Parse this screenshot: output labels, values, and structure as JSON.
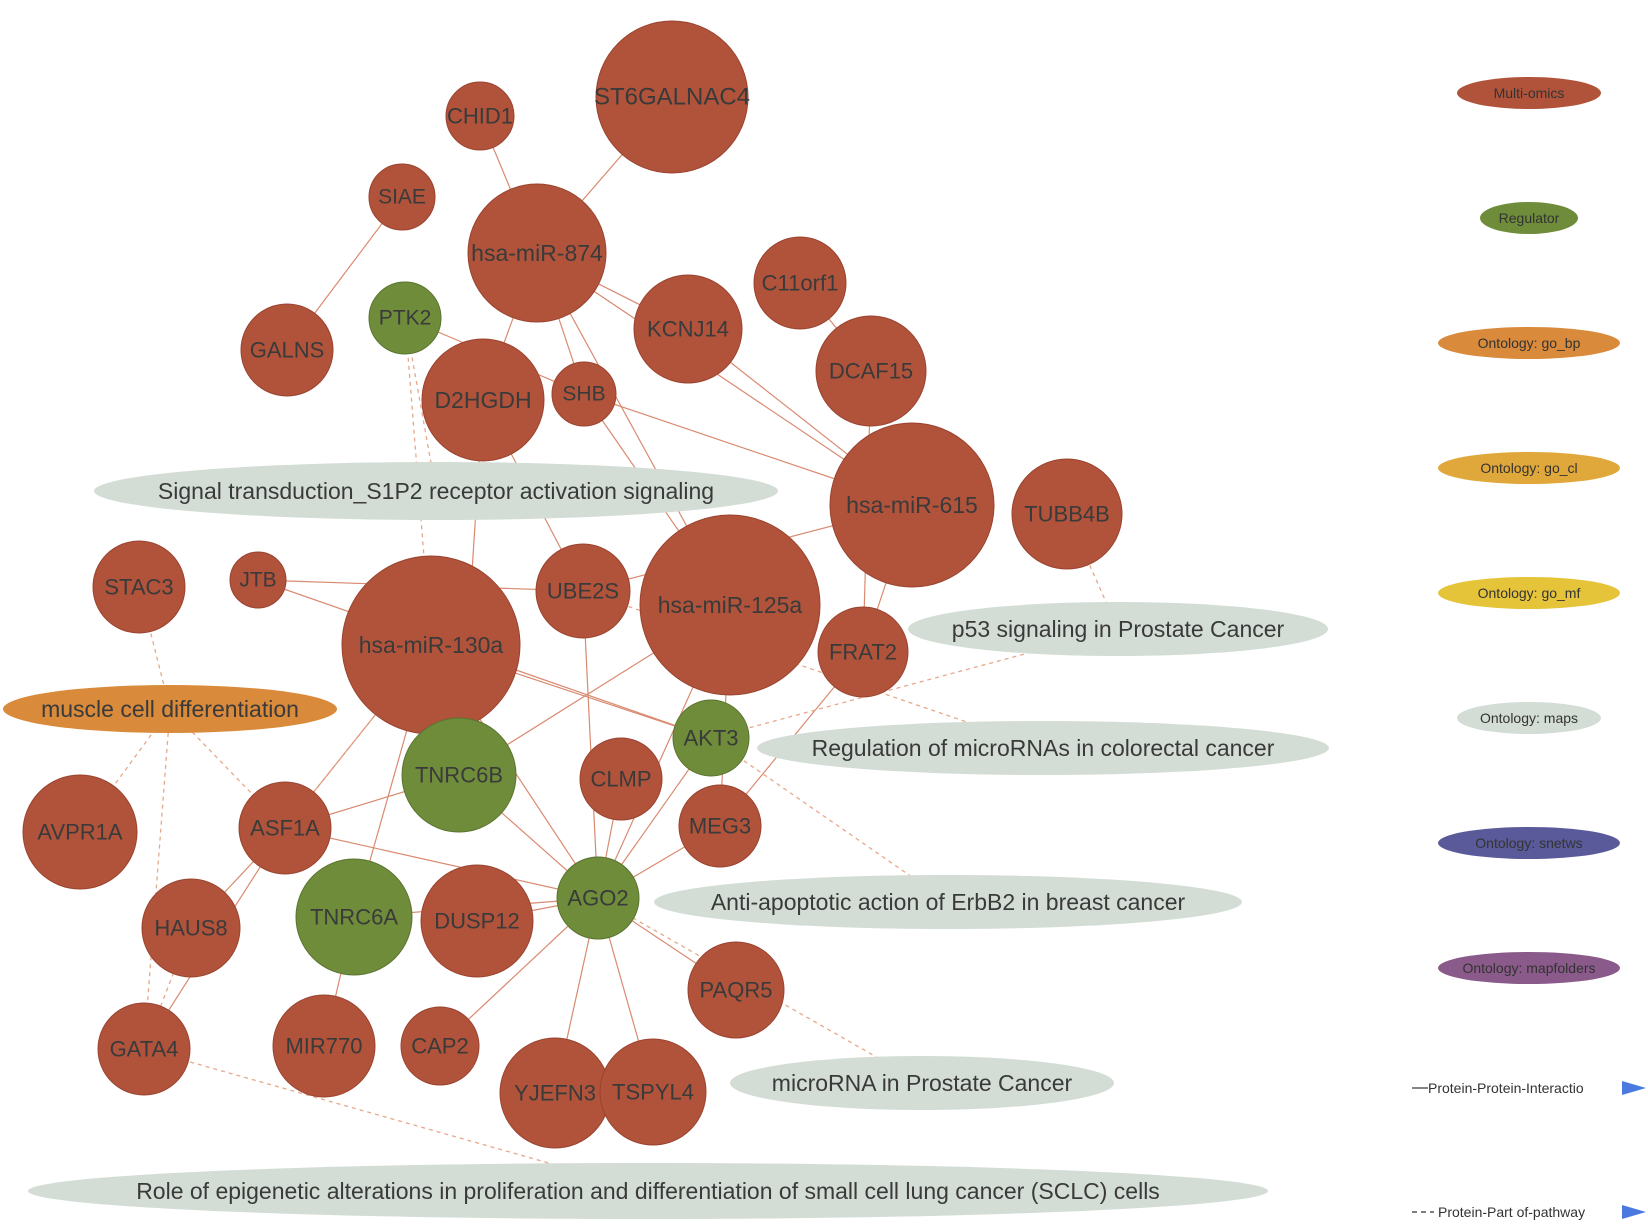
{
  "colors": {
    "multi_omics": "#b0533a",
    "regulator": "#6e8c3a",
    "go_bp": "#d98a3a",
    "go_cl": "#e0a83a",
    "go_mf": "#e6c43a",
    "maps": "#d3ddd5",
    "snetws": "#5a5a9a",
    "mapfolders": "#8a5a8a",
    "ppi_edge": "#d98a70",
    "pathway_edge": "#e6a88a",
    "legend_arrow": "#4a7ae0"
  },
  "nodes": [
    {
      "id": "ST6GALNAC4",
      "label": "ST6GALNAC4",
      "type": "multi_omics"
    },
    {
      "id": "CHID1",
      "label": "CHID1",
      "type": "multi_omics"
    },
    {
      "id": "SIAE",
      "label": "SIAE",
      "type": "multi_omics"
    },
    {
      "id": "hsa-miR-874",
      "label": "hsa-miR-874",
      "type": "multi_omics"
    },
    {
      "id": "C11orf1",
      "label": "C11orf1",
      "type": "multi_omics"
    },
    {
      "id": "PTK2",
      "label": "PTK2",
      "type": "regulator"
    },
    {
      "id": "GALNS",
      "label": "GALNS",
      "type": "multi_omics"
    },
    {
      "id": "KCNJ14",
      "label": "KCNJ14",
      "type": "multi_omics"
    },
    {
      "id": "DCAF15",
      "label": "DCAF15",
      "type": "multi_omics"
    },
    {
      "id": "D2HGDH",
      "label": "D2HGDH",
      "type": "multi_omics"
    },
    {
      "id": "SHB",
      "label": "SHB",
      "type": "multi_omics"
    },
    {
      "id": "hsa-miR-615",
      "label": "hsa-miR-615",
      "type": "multi_omics"
    },
    {
      "id": "TUBB4B",
      "label": "TUBB4B",
      "type": "multi_omics"
    },
    {
      "id": "STAC3",
      "label": "STAC3",
      "type": "multi_omics"
    },
    {
      "id": "JTB",
      "label": "JTB",
      "type": "multi_omics"
    },
    {
      "id": "hsa-miR-130a",
      "label": "hsa-miR-130a",
      "type": "multi_omics"
    },
    {
      "id": "UBE2S",
      "label": "UBE2S",
      "type": "multi_omics"
    },
    {
      "id": "hsa-miR-125a",
      "label": "hsa-miR-125a",
      "type": "multi_omics"
    },
    {
      "id": "FRAT2",
      "label": "FRAT2",
      "type": "multi_omics"
    },
    {
      "id": "AKT3",
      "label": "AKT3",
      "type": "regulator"
    },
    {
      "id": "TNRC6B",
      "label": "TNRC6B",
      "type": "regulator"
    },
    {
      "id": "CLMP",
      "label": "CLMP",
      "type": "multi_omics"
    },
    {
      "id": "AVPR1A",
      "label": "AVPR1A",
      "type": "multi_omics"
    },
    {
      "id": "ASF1A",
      "label": "ASF1A",
      "type": "multi_omics"
    },
    {
      "id": "MEG3",
      "label": "MEG3",
      "type": "multi_omics"
    },
    {
      "id": "HAUS8",
      "label": "HAUS8",
      "type": "multi_omics"
    },
    {
      "id": "TNRC6A",
      "label": "TNRC6A",
      "type": "regulator"
    },
    {
      "id": "DUSP12",
      "label": "DUSP12",
      "type": "multi_omics"
    },
    {
      "id": "AGO2",
      "label": "AGO2",
      "type": "regulator"
    },
    {
      "id": "PAQR5",
      "label": "PAQR5",
      "type": "multi_omics"
    },
    {
      "id": "GATA4",
      "label": "GATA4",
      "type": "multi_omics"
    },
    {
      "id": "MIR770",
      "label": "MIR770",
      "type": "multi_omics"
    },
    {
      "id": "CAP2",
      "label": "CAP2",
      "type": "multi_omics"
    },
    {
      "id": "YJEFN3",
      "label": "YJEFN3",
      "type": "multi_omics"
    },
    {
      "id": "TSPYL4",
      "label": "TSPYL4",
      "type": "multi_omics"
    },
    {
      "id": "s1p2",
      "label": "Signal transduction_S1P2 receptor activation signaling",
      "type": "maps"
    },
    {
      "id": "p53",
      "label": "p53 signaling in Prostate Cancer",
      "type": "maps"
    },
    {
      "id": "muscle",
      "label": "muscle cell differentiation",
      "type": "go_bp"
    },
    {
      "id": "mirna_crc",
      "label": "Regulation of microRNAs in colorectal cancer",
      "type": "maps"
    },
    {
      "id": "erbb2",
      "label": "Anti-apoptotic action of ErbB2 in breast cancer",
      "type": "maps"
    },
    {
      "id": "mirna_pc",
      "label": "microRNA in Prostate Cancer",
      "type": "maps"
    },
    {
      "id": "sclc",
      "label": "Role of epigenetic alterations in proliferation and differentiation of small cell lung cancer (SCLC) cells",
      "type": "maps"
    }
  ],
  "ppi_edges": [
    [
      "ST6GALNAC4",
      "hsa-miR-874"
    ],
    [
      "CHID1",
      "hsa-miR-874"
    ],
    [
      "SIAE",
      "GALNS"
    ],
    [
      "hsa-miR-874",
      "KCNJ14"
    ],
    [
      "hsa-miR-874",
      "SHB"
    ],
    [
      "hsa-miR-874",
      "D2HGDH"
    ],
    [
      "hsa-miR-874",
      "hsa-miR-615"
    ],
    [
      "hsa-miR-874",
      "hsa-miR-125a"
    ],
    [
      "C11orf1",
      "DCAF15"
    ],
    [
      "KCNJ14",
      "hsa-miR-615"
    ],
    [
      "PTK2",
      "SHB"
    ],
    [
      "SHB",
      "hsa-miR-615"
    ],
    [
      "SHB",
      "hsa-miR-125a"
    ],
    [
      "D2HGDH",
      "TNRC6B"
    ],
    [
      "D2HGDH",
      "UBE2S"
    ],
    [
      "hsa-miR-615",
      "UBE2S"
    ],
    [
      "hsa-miR-615",
      "FRAT2"
    ],
    [
      "DCAF15",
      "FRAT2"
    ],
    [
      "JTB",
      "UBE2S"
    ],
    [
      "JTB",
      "AKT3"
    ],
    [
      "hsa-miR-130a",
      "AKT3"
    ],
    [
      "hsa-miR-130a",
      "ASF1A"
    ],
    [
      "hsa-miR-130a",
      "TNRC6A"
    ],
    [
      "hsa-miR-130a",
      "AGO2"
    ],
    [
      "hsa-miR-125a",
      "TNRC6B"
    ],
    [
      "hsa-miR-125a",
      "AGO2"
    ],
    [
      "hsa-miR-125a",
      "MEG3"
    ],
    [
      "UBE2S",
      "AGO2"
    ],
    [
      "FRAT2",
      "MEG3"
    ],
    [
      "AKT3",
      "AGO2"
    ],
    [
      "TNRC6B",
      "AGO2"
    ],
    [
      "TNRC6B",
      "ASF1A"
    ],
    [
      "ASF1A",
      "AGO2"
    ],
    [
      "ASF1A",
      "HAUS8"
    ],
    [
      "ASF1A",
      "GATA4"
    ],
    [
      "TNRC6A",
      "AGO2"
    ],
    [
      "TNRC6A",
      "MIR770"
    ],
    [
      "DUSP12",
      "AGO2"
    ],
    [
      "CLMP",
      "AGO2"
    ],
    [
      "MEG3",
      "AGO2"
    ],
    [
      "AGO2",
      "PAQR5"
    ],
    [
      "AGO2",
      "CAP2"
    ],
    [
      "AGO2",
      "YJEFN3"
    ],
    [
      "AGO2",
      "TSPYL4"
    ]
  ],
  "pathway_edges": [
    [
      "PTK2",
      "s1p2"
    ],
    [
      "PTK2",
      "hsa-miR-130a"
    ],
    [
      "TUBB4B",
      "p53"
    ],
    [
      "AKT3",
      "p53"
    ],
    [
      "STAC3",
      "muscle"
    ],
    [
      "muscle",
      "AVPR1A"
    ],
    [
      "muscle",
      "ASF1A"
    ],
    [
      "muscle",
      "GATA4"
    ],
    [
      "AKT3",
      "erbb2"
    ],
    [
      "UBE2S",
      "mirna_crc"
    ],
    [
      "AGO2",
      "mirna_pc"
    ],
    [
      "GATA4",
      "sclc"
    ],
    [
      "ASF1A",
      "hsa-miR-130a"
    ],
    [
      "HAUS8",
      "GATA4"
    ]
  ],
  "legend": {
    "items": [
      {
        "label": "Multi-omics",
        "type": "multi_omics"
      },
      {
        "label": "Regulator",
        "type": "regulator"
      },
      {
        "label": "Ontology: go_bp",
        "type": "go_bp"
      },
      {
        "label": "Ontology: go_cl",
        "type": "go_cl"
      },
      {
        "label": "Ontology: go_mf",
        "type": "go_mf"
      },
      {
        "label": "Ontology: maps",
        "type": "maps"
      },
      {
        "label": "Ontology: snetws",
        "type": "snetws"
      },
      {
        "label": "Ontology: mapfolders",
        "type": "mapfolders"
      }
    ],
    "edges": [
      {
        "label": "Protein-Protein-Interactio",
        "style": "solid"
      },
      {
        "label": "Protein-Part of-pathway",
        "style": "dashed"
      }
    ]
  }
}
